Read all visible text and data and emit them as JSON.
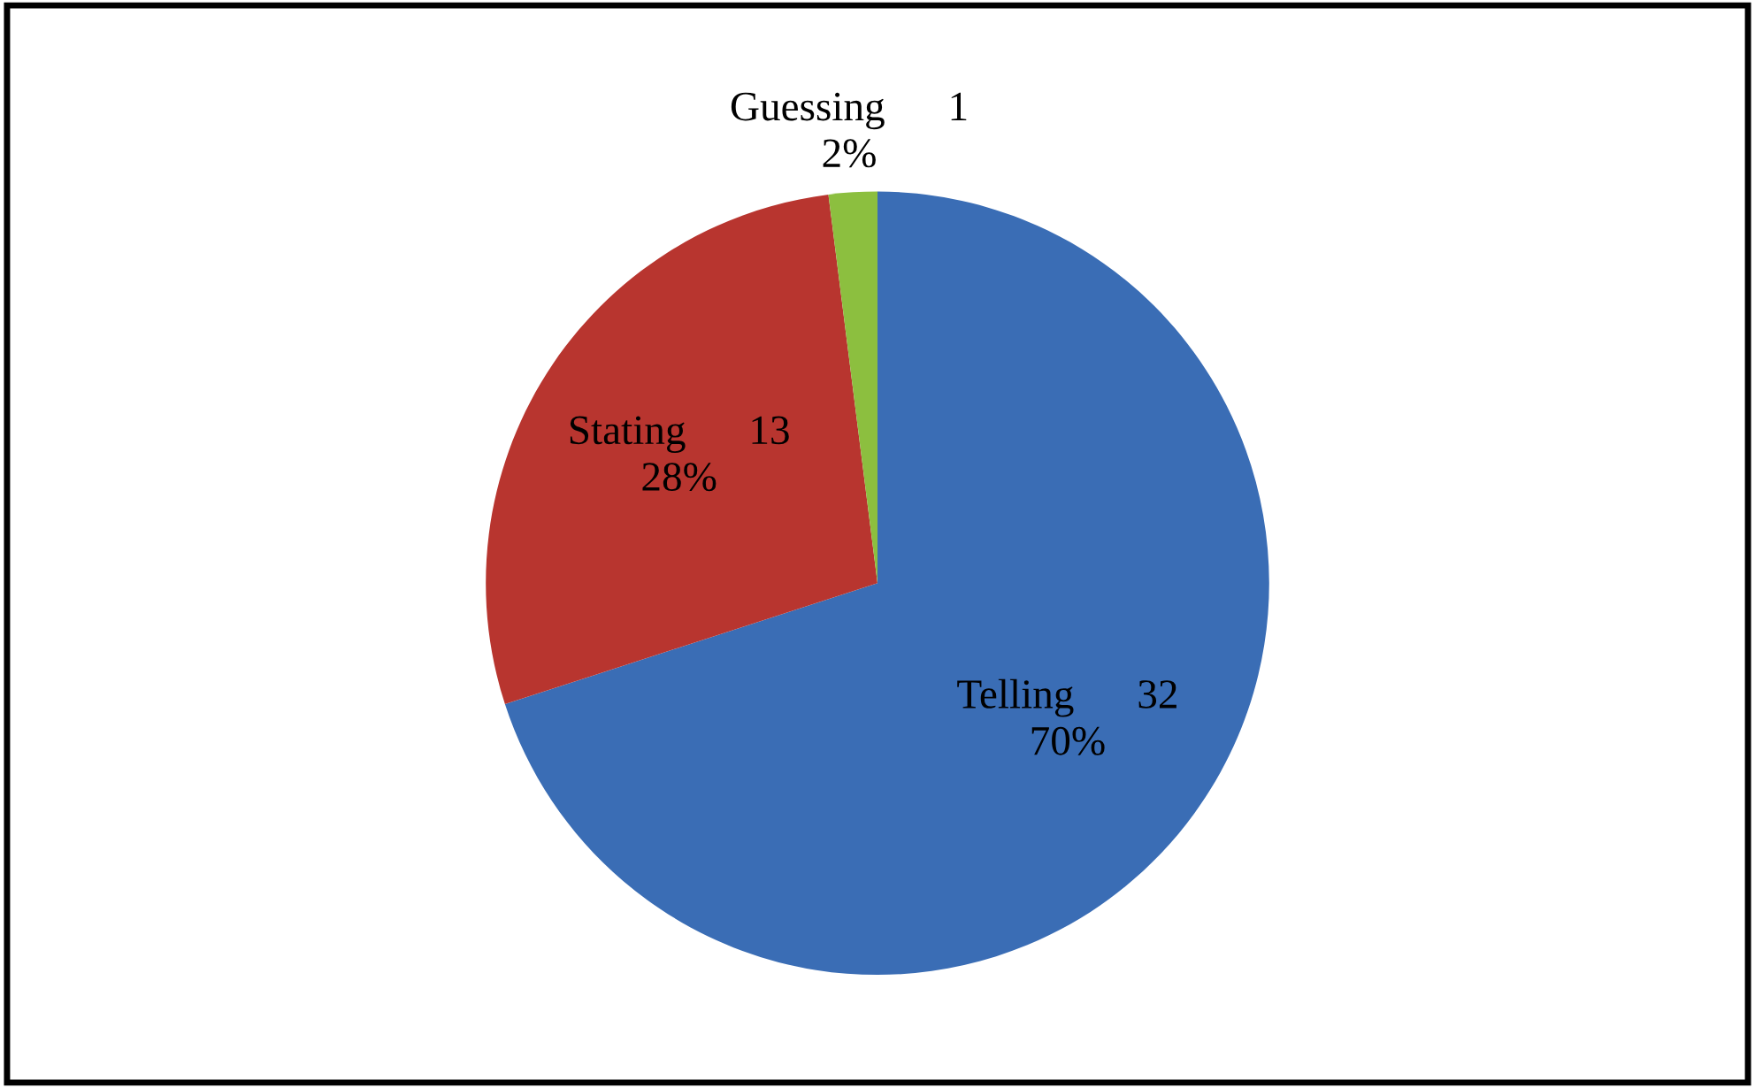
{
  "chart_data": {
    "type": "pie",
    "categories": [
      "Telling      32",
      "Stating      13",
      "Guessing      1"
    ],
    "values": [
      70,
      28,
      2
    ],
    "colors": [
      "#3a6db5",
      "#b8352f",
      "#8cbf3f"
    ],
    "value_labels": [
      "70%",
      "28%",
      "2%"
    ]
  }
}
